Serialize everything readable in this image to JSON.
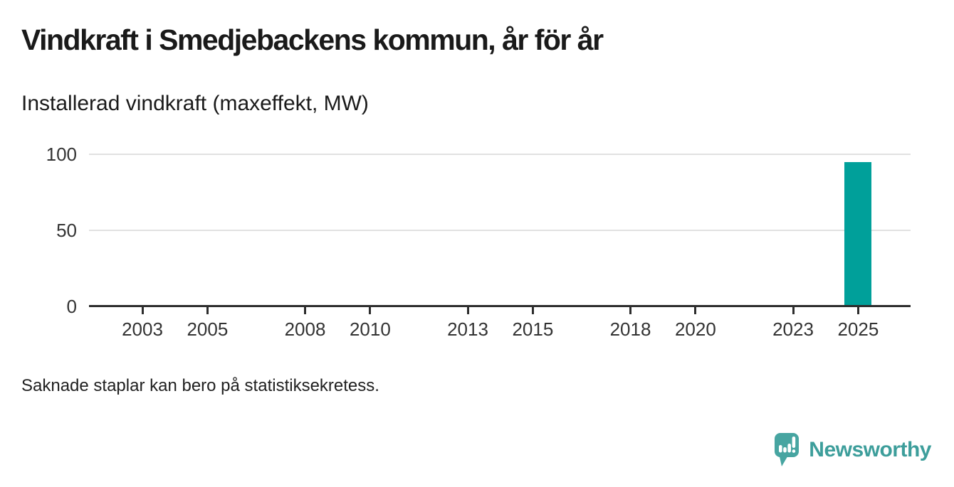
{
  "page": {
    "title": "Vindkraft i Smedjebackens kommun, år för år",
    "subtitle": "Installerad vindkraft (maxeffekt, MW)",
    "footnote": "Saknade staplar kan bero på statistiksekretess.",
    "background": "#ffffff"
  },
  "chart_data": {
    "type": "bar",
    "title": "Vindkraft i Smedjebackens kommun, år för år",
    "subtitle": "Installerad vindkraft (maxeffekt, MW)",
    "ylabel": "Installerad vindkraft (maxeffekt, MW)",
    "xlabel": "",
    "unit": "MW",
    "x_range": [
      2002,
      2026
    ],
    "x_ticks": [
      2003,
      2005,
      2008,
      2010,
      2013,
      2015,
      2018,
      2020,
      2023,
      2025
    ],
    "y_ticks": [
      0,
      50,
      100
    ],
    "ylim": [
      0,
      100
    ],
    "bars": [
      {
        "year": 2025,
        "value": 95
      }
    ],
    "missing_bars_note": "Saknade staplar kan bero på statistiksekretess.",
    "grid": "horizontal",
    "legend": "none",
    "bar_color": "#00a09a"
  },
  "branding": {
    "logo_text": "Newsworthy",
    "logo_icon": "speech-bubble-bar-chart-icon",
    "icon_color": "#47a5a1",
    "text_color": "#3d9e9b"
  },
  "colors": {
    "bar": "#00a09a",
    "axis": "#2d2d2d",
    "gridline": "#e1e1e1",
    "tick_text": "#333333",
    "title_text": "#1a1a1a"
  }
}
